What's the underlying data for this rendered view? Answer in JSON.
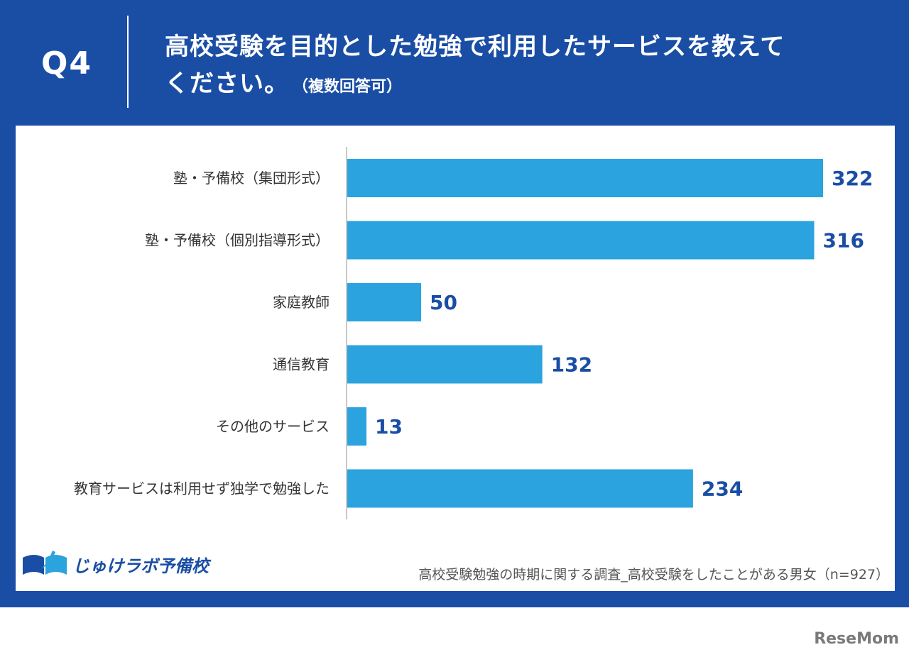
{
  "header": {
    "question_number": "Q4",
    "title_line1": "高校受験を目的とした勉強で利用したサービスを教えて",
    "title_line2": "ください。",
    "title_note": "（複数回答可）"
  },
  "chart_data": {
    "type": "bar",
    "orientation": "horizontal",
    "categories": [
      "塾・予備校（集団形式）",
      "塾・予備校（個別指導形式）",
      "家庭教師",
      "通信教育",
      "その他のサービス",
      "教育サービスは利用せず独学で勉強した"
    ],
    "values": [
      322,
      316,
      50,
      132,
      13,
      234
    ],
    "xlim": [
      0,
      322
    ],
    "bar_color": "#2ba3de",
    "value_label_color": "#1a4ea5",
    "grid": false,
    "legend": "none"
  },
  "footer": {
    "logo_text": "じゅけラボ予備校",
    "source": "高校受験勉強の時期に関する調査_高校受験をしたことがある男女（n=927）",
    "watermark": "ReseMom"
  },
  "colors": {
    "frame": "#1a4ea5",
    "bar": "#2ba3de",
    "label_text": "#333333"
  }
}
